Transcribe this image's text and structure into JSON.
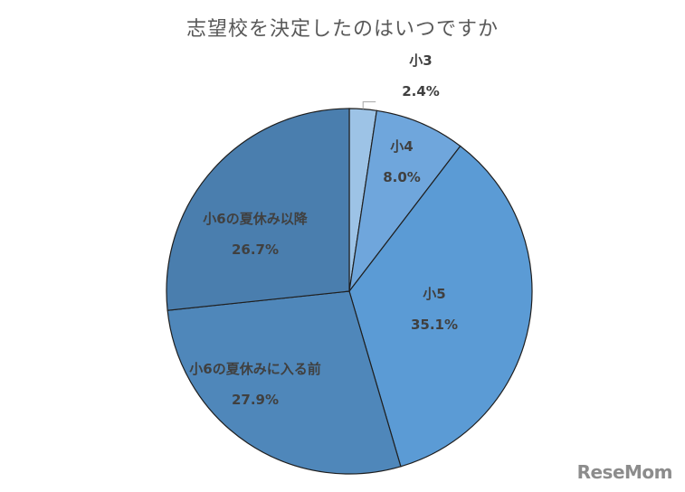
{
  "chart_data": {
    "type": "pie",
    "title": "志望校を決定したのはいつですか",
    "categories": [
      "小3",
      "小4",
      "小5",
      "小6の夏休みに入る前",
      "小6の夏休み以降"
    ],
    "values": [
      2.4,
      8.0,
      35.1,
      27.9,
      26.7
    ],
    "value_labels": [
      "2.4%",
      "8.0%",
      "35.1%",
      "27.9%",
      "26.7%"
    ],
    "colors": [
      "#9dc3e6",
      "#6fa6dc",
      "#5b9bd5",
      "#4f87ba",
      "#4a7eae"
    ],
    "start": "12 o'clock",
    "direction": "clockwise",
    "legend": "none"
  },
  "watermark": "ReseMom"
}
